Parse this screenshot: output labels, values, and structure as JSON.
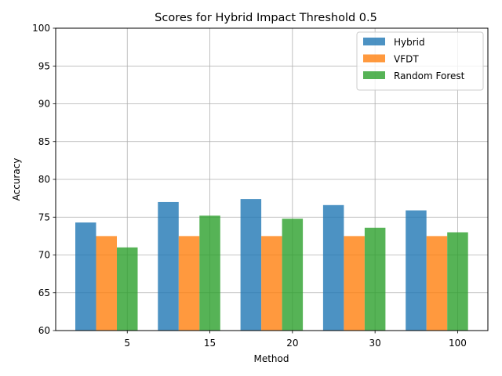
{
  "chart_data": {
    "type": "bar",
    "title": "Scores for Hybrid Impact Threshold 0.5",
    "xlabel": "Method",
    "ylabel": "Accuracy",
    "categories": [
      "5",
      "15",
      "20",
      "30",
      "100"
    ],
    "ylim": [
      60,
      100
    ],
    "yticks": [
      "60",
      "65",
      "70",
      "75",
      "80",
      "85",
      "90",
      "95",
      "100"
    ],
    "grid": true,
    "legend_position": "top-right",
    "series": [
      {
        "name": "Hybrid",
        "color": "#1f77b4",
        "values": [
          74.3,
          77.0,
          77.4,
          76.6,
          75.9
        ]
      },
      {
        "name": "VFDT",
        "color": "#ff7f0e",
        "values": [
          72.5,
          72.5,
          72.5,
          72.5,
          72.5
        ]
      },
      {
        "name": "Random Forest",
        "color": "#2ca02c",
        "values": [
          71.0,
          75.2,
          74.8,
          73.6,
          73.0
        ]
      }
    ]
  }
}
